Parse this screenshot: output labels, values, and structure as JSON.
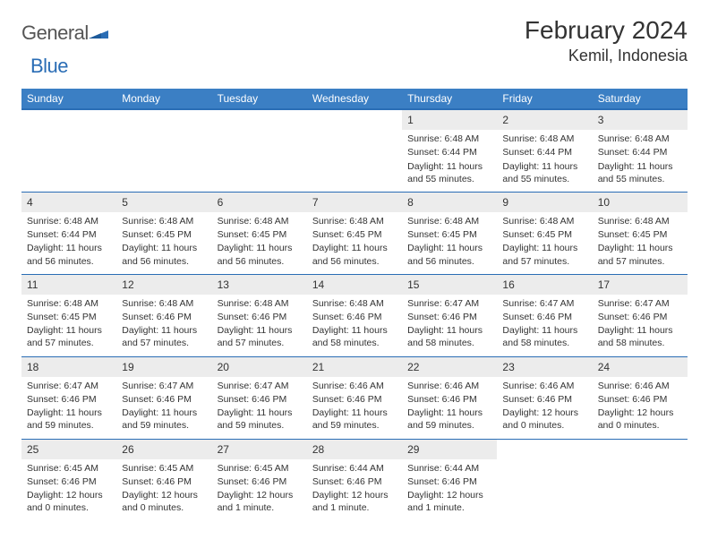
{
  "logo": {
    "word1": "General",
    "word2": "Blue",
    "mark_color": "#2a6db5"
  },
  "header": {
    "title": "February 2024",
    "location": "Kemil, Indonesia"
  },
  "colors": {
    "header_bg": "#3b7fc4",
    "header_text": "#ffffff",
    "daynum_bg": "#ececec",
    "border": "#2a6db5",
    "body_text": "#333333"
  },
  "calendar": {
    "day_headers": [
      "Sunday",
      "Monday",
      "Tuesday",
      "Wednesday",
      "Thursday",
      "Friday",
      "Saturday"
    ],
    "weeks": [
      [
        null,
        null,
        null,
        null,
        {
          "num": "1",
          "sunrise": "Sunrise: 6:48 AM",
          "sunset": "Sunset: 6:44 PM",
          "daylight": "Daylight: 11 hours and 55 minutes."
        },
        {
          "num": "2",
          "sunrise": "Sunrise: 6:48 AM",
          "sunset": "Sunset: 6:44 PM",
          "daylight": "Daylight: 11 hours and 55 minutes."
        },
        {
          "num": "3",
          "sunrise": "Sunrise: 6:48 AM",
          "sunset": "Sunset: 6:44 PM",
          "daylight": "Daylight: 11 hours and 55 minutes."
        }
      ],
      [
        {
          "num": "4",
          "sunrise": "Sunrise: 6:48 AM",
          "sunset": "Sunset: 6:44 PM",
          "daylight": "Daylight: 11 hours and 56 minutes."
        },
        {
          "num": "5",
          "sunrise": "Sunrise: 6:48 AM",
          "sunset": "Sunset: 6:45 PM",
          "daylight": "Daylight: 11 hours and 56 minutes."
        },
        {
          "num": "6",
          "sunrise": "Sunrise: 6:48 AM",
          "sunset": "Sunset: 6:45 PM",
          "daylight": "Daylight: 11 hours and 56 minutes."
        },
        {
          "num": "7",
          "sunrise": "Sunrise: 6:48 AM",
          "sunset": "Sunset: 6:45 PM",
          "daylight": "Daylight: 11 hours and 56 minutes."
        },
        {
          "num": "8",
          "sunrise": "Sunrise: 6:48 AM",
          "sunset": "Sunset: 6:45 PM",
          "daylight": "Daylight: 11 hours and 56 minutes."
        },
        {
          "num": "9",
          "sunrise": "Sunrise: 6:48 AM",
          "sunset": "Sunset: 6:45 PM",
          "daylight": "Daylight: 11 hours and 57 minutes."
        },
        {
          "num": "10",
          "sunrise": "Sunrise: 6:48 AM",
          "sunset": "Sunset: 6:45 PM",
          "daylight": "Daylight: 11 hours and 57 minutes."
        }
      ],
      [
        {
          "num": "11",
          "sunrise": "Sunrise: 6:48 AM",
          "sunset": "Sunset: 6:45 PM",
          "daylight": "Daylight: 11 hours and 57 minutes."
        },
        {
          "num": "12",
          "sunrise": "Sunrise: 6:48 AM",
          "sunset": "Sunset: 6:46 PM",
          "daylight": "Daylight: 11 hours and 57 minutes."
        },
        {
          "num": "13",
          "sunrise": "Sunrise: 6:48 AM",
          "sunset": "Sunset: 6:46 PM",
          "daylight": "Daylight: 11 hours and 57 minutes."
        },
        {
          "num": "14",
          "sunrise": "Sunrise: 6:48 AM",
          "sunset": "Sunset: 6:46 PM",
          "daylight": "Daylight: 11 hours and 58 minutes."
        },
        {
          "num": "15",
          "sunrise": "Sunrise: 6:47 AM",
          "sunset": "Sunset: 6:46 PM",
          "daylight": "Daylight: 11 hours and 58 minutes."
        },
        {
          "num": "16",
          "sunrise": "Sunrise: 6:47 AM",
          "sunset": "Sunset: 6:46 PM",
          "daylight": "Daylight: 11 hours and 58 minutes."
        },
        {
          "num": "17",
          "sunrise": "Sunrise: 6:47 AM",
          "sunset": "Sunset: 6:46 PM",
          "daylight": "Daylight: 11 hours and 58 minutes."
        }
      ],
      [
        {
          "num": "18",
          "sunrise": "Sunrise: 6:47 AM",
          "sunset": "Sunset: 6:46 PM",
          "daylight": "Daylight: 11 hours and 59 minutes."
        },
        {
          "num": "19",
          "sunrise": "Sunrise: 6:47 AM",
          "sunset": "Sunset: 6:46 PM",
          "daylight": "Daylight: 11 hours and 59 minutes."
        },
        {
          "num": "20",
          "sunrise": "Sunrise: 6:47 AM",
          "sunset": "Sunset: 6:46 PM",
          "daylight": "Daylight: 11 hours and 59 minutes."
        },
        {
          "num": "21",
          "sunrise": "Sunrise: 6:46 AM",
          "sunset": "Sunset: 6:46 PM",
          "daylight": "Daylight: 11 hours and 59 minutes."
        },
        {
          "num": "22",
          "sunrise": "Sunrise: 6:46 AM",
          "sunset": "Sunset: 6:46 PM",
          "daylight": "Daylight: 11 hours and 59 minutes."
        },
        {
          "num": "23",
          "sunrise": "Sunrise: 6:46 AM",
          "sunset": "Sunset: 6:46 PM",
          "daylight": "Daylight: 12 hours and 0 minutes."
        },
        {
          "num": "24",
          "sunrise": "Sunrise: 6:46 AM",
          "sunset": "Sunset: 6:46 PM",
          "daylight": "Daylight: 12 hours and 0 minutes."
        }
      ],
      [
        {
          "num": "25",
          "sunrise": "Sunrise: 6:45 AM",
          "sunset": "Sunset: 6:46 PM",
          "daylight": "Daylight: 12 hours and 0 minutes."
        },
        {
          "num": "26",
          "sunrise": "Sunrise: 6:45 AM",
          "sunset": "Sunset: 6:46 PM",
          "daylight": "Daylight: 12 hours and 0 minutes."
        },
        {
          "num": "27",
          "sunrise": "Sunrise: 6:45 AM",
          "sunset": "Sunset: 6:46 PM",
          "daylight": "Daylight: 12 hours and 1 minute."
        },
        {
          "num": "28",
          "sunrise": "Sunrise: 6:44 AM",
          "sunset": "Sunset: 6:46 PM",
          "daylight": "Daylight: 12 hours and 1 minute."
        },
        {
          "num": "29",
          "sunrise": "Sunrise: 6:44 AM",
          "sunset": "Sunset: 6:46 PM",
          "daylight": "Daylight: 12 hours and 1 minute."
        },
        null,
        null
      ]
    ]
  }
}
